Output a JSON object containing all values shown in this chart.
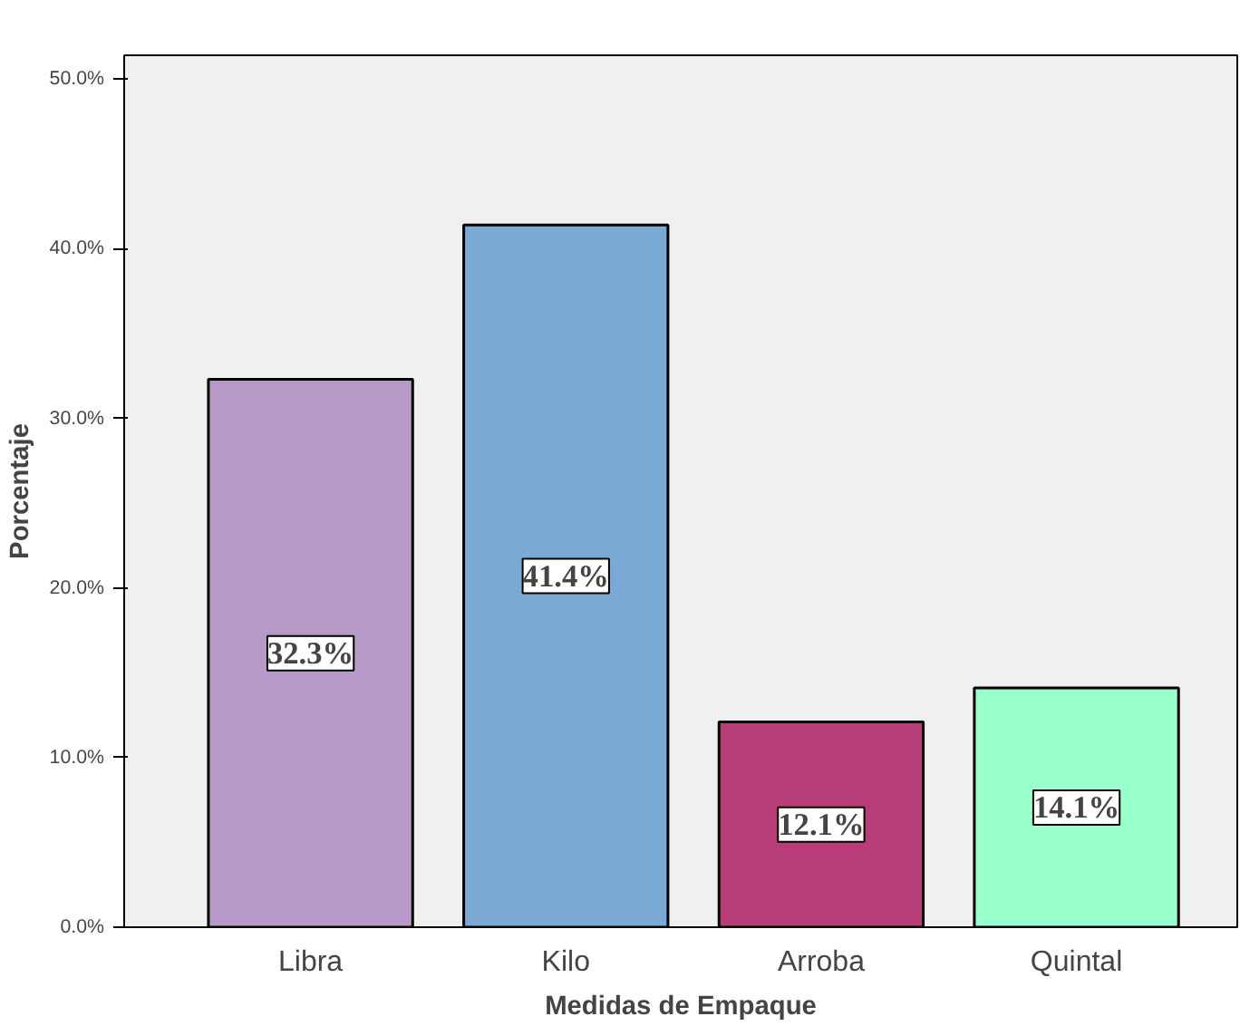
{
  "chart_data": {
    "type": "bar",
    "xlabel": "Medidas de Empaque",
    "ylabel": "Porcentaje",
    "categories": [
      "Libra",
      "Kilo",
      "Arroba",
      "Quintal"
    ],
    "values": [
      32.3,
      41.4,
      12.1,
      14.1
    ],
    "colors": [
      "#b89ac8",
      "#7aa9d6",
      "#b83c78",
      "#99ffcc"
    ],
    "value_labels": [
      "32.3%",
      "41.4%",
      "12.1%",
      "14.1%"
    ],
    "ylim": [
      0,
      51.4
    ],
    "yticks": [
      {
        "value": 0,
        "label": "0.0%"
      },
      {
        "value": 10,
        "label": "10.0%"
      },
      {
        "value": 20,
        "label": "20.0%"
      },
      {
        "value": 30,
        "label": "30.0%"
      },
      {
        "value": 40,
        "label": "40.0%"
      },
      {
        "value": 50,
        "label": "50.0%"
      }
    ],
    "grid": false
  }
}
